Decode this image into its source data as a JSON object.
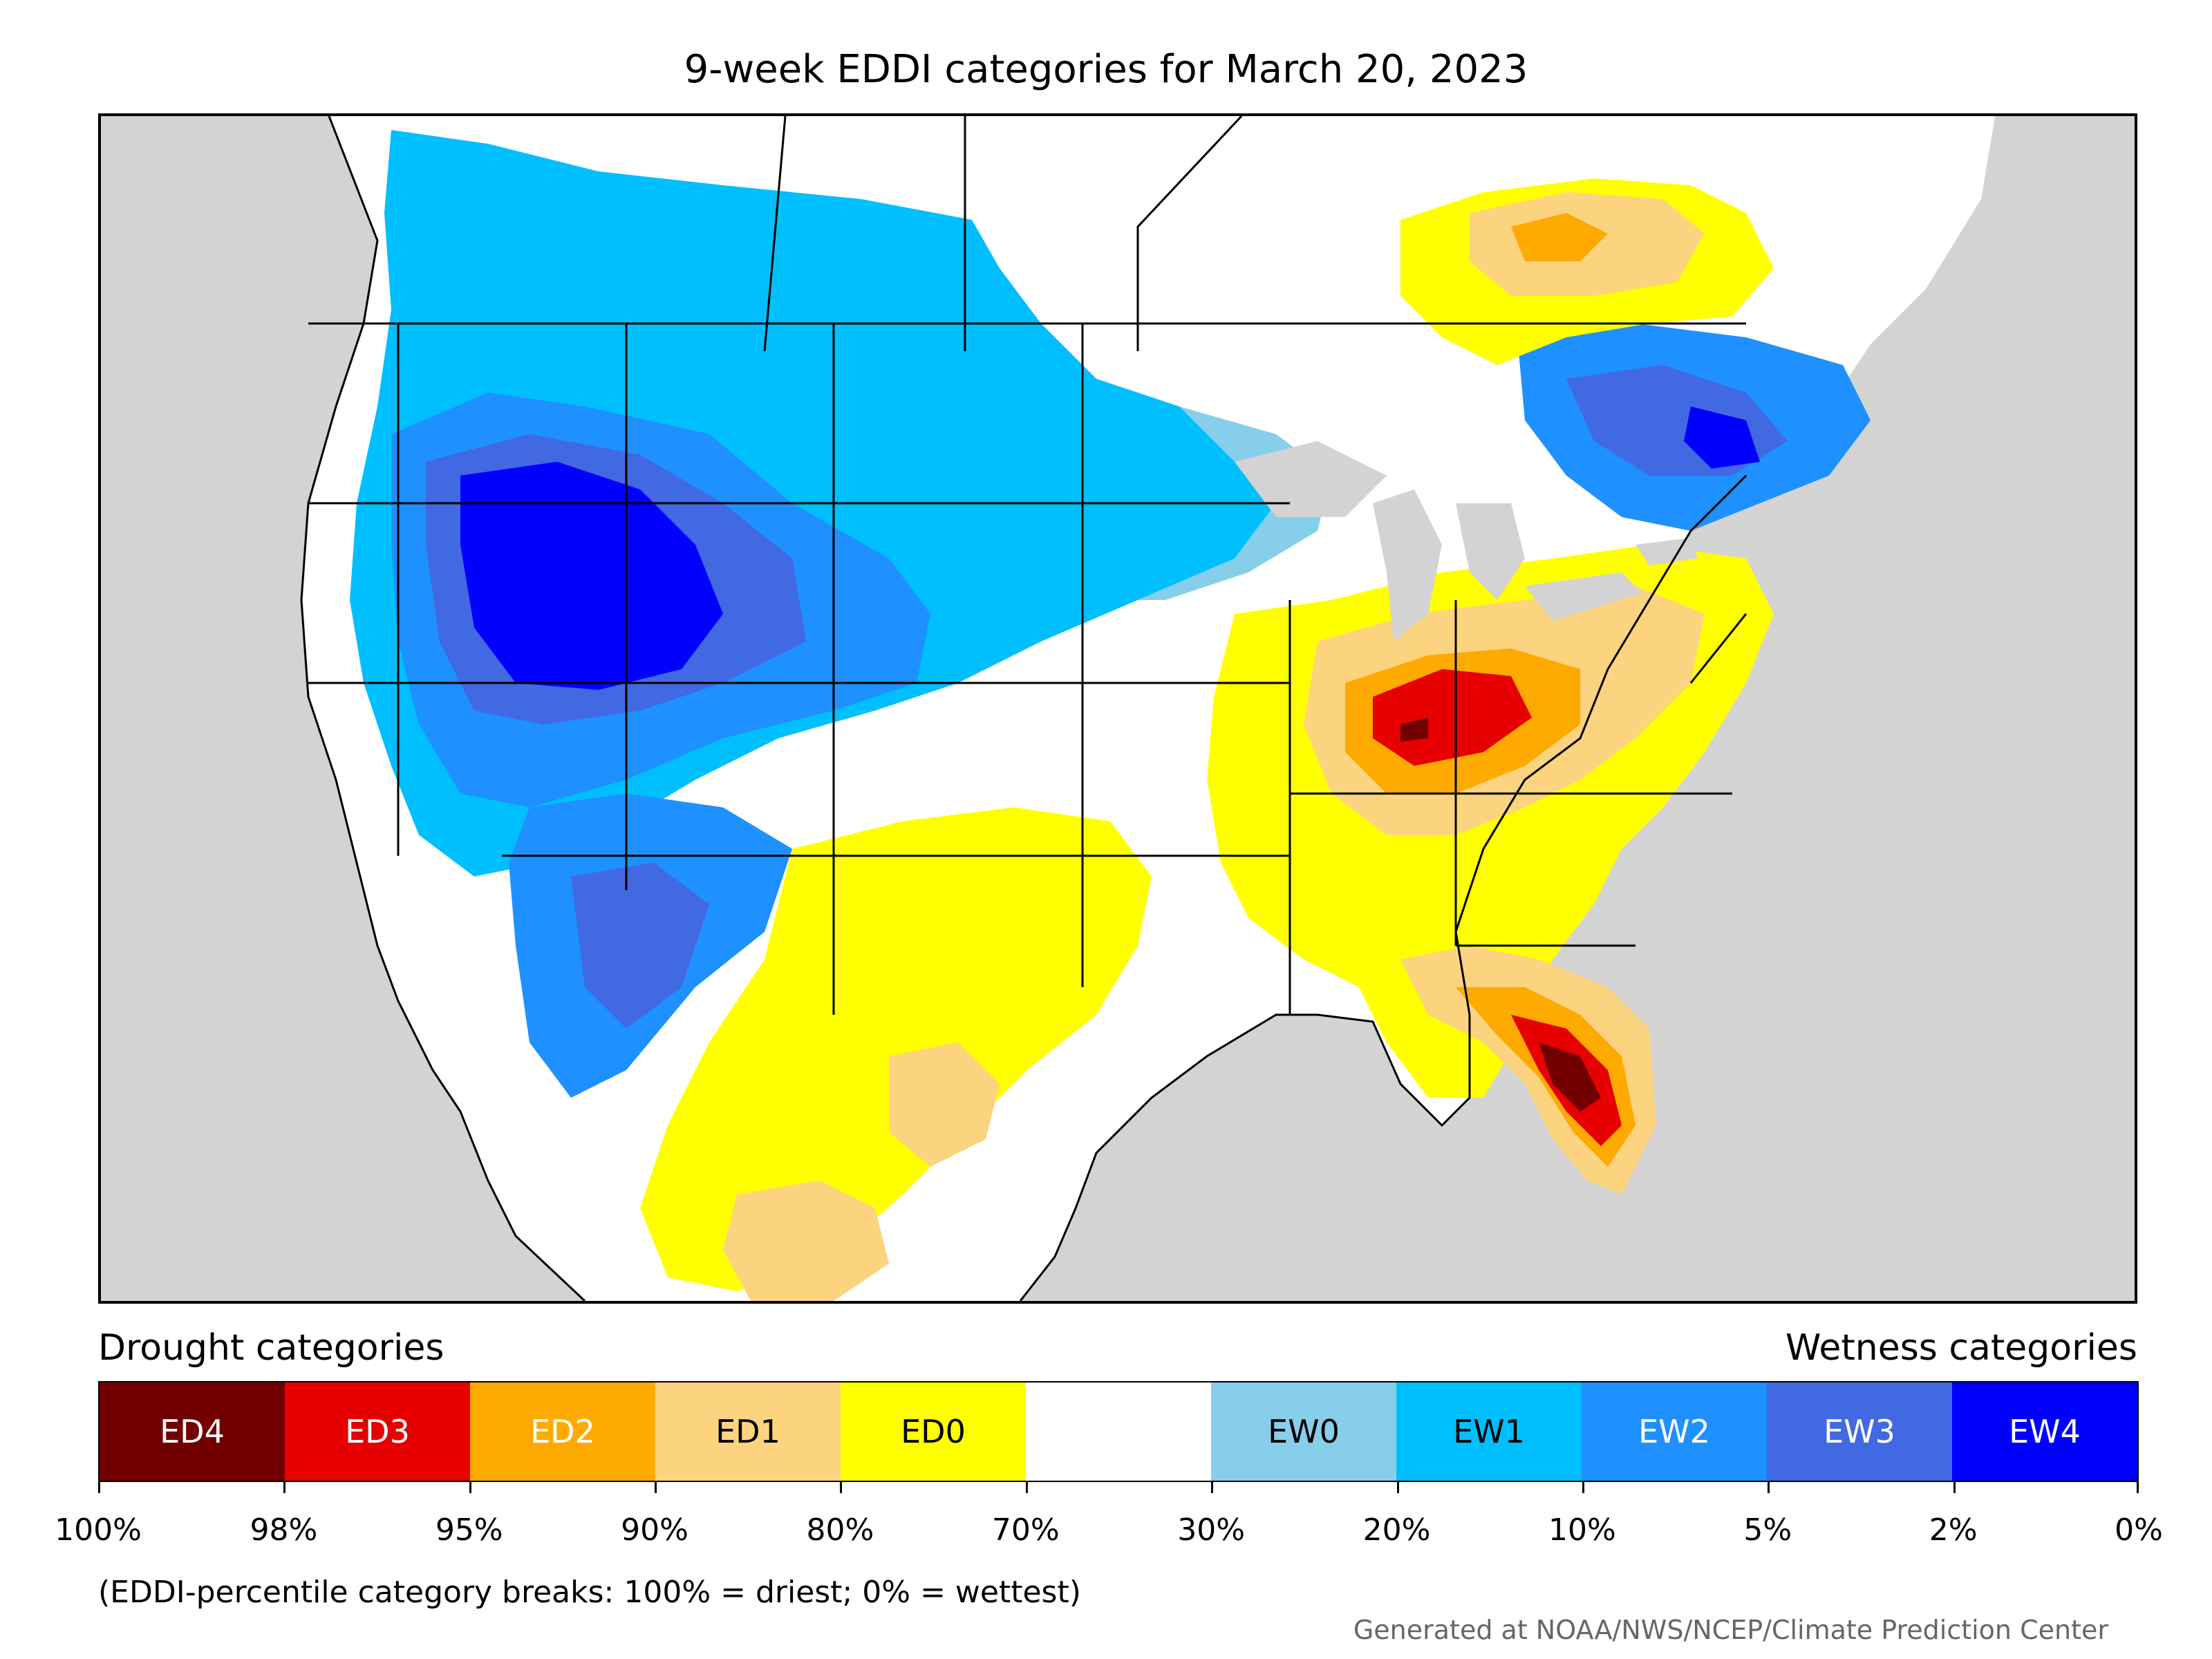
{
  "title": "9-week EDDI categories for March 20, 2023",
  "legend": {
    "drought_heading": "Drought categories",
    "wetness_heading": "Wetness categories",
    "categories": [
      {
        "label": "ED4",
        "color": "#730000",
        "text_color": "#ffffff"
      },
      {
        "label": "ED3",
        "color": "#e60000",
        "text_color": "#ffffff"
      },
      {
        "label": "ED2",
        "color": "#ffaa00",
        "text_color": "#ffffff"
      },
      {
        "label": "ED1",
        "color": "#fcd37f",
        "text_color": "#000000"
      },
      {
        "label": "ED0",
        "color": "#ffff00",
        "text_color": "#000000"
      },
      {
        "label": "",
        "color": "#ffffff",
        "text_color": "#000000"
      },
      {
        "label": "EW0",
        "color": "#87ceeb",
        "text_color": "#000000"
      },
      {
        "label": "EW1",
        "color": "#00bfff",
        "text_color": "#000000"
      },
      {
        "label": "EW2",
        "color": "#1e90ff",
        "text_color": "#ffffff"
      },
      {
        "label": "EW3",
        "color": "#4169e1",
        "text_color": "#ffffff"
      },
      {
        "label": "EW4",
        "color": "#0000ff",
        "text_color": "#ffffff"
      }
    ],
    "ticks": [
      "100%",
      "98%",
      "95%",
      "90%",
      "80%",
      "70%",
      "30%",
      "20%",
      "10%",
      "5%",
      "2%",
      "0%"
    ]
  },
  "note": "(EDDI-percentile category breaks: 100% = driest; 0% = wettest)",
  "credit": "Generated at NOAA/NWS/NCEP/Climate Prediction Center"
}
